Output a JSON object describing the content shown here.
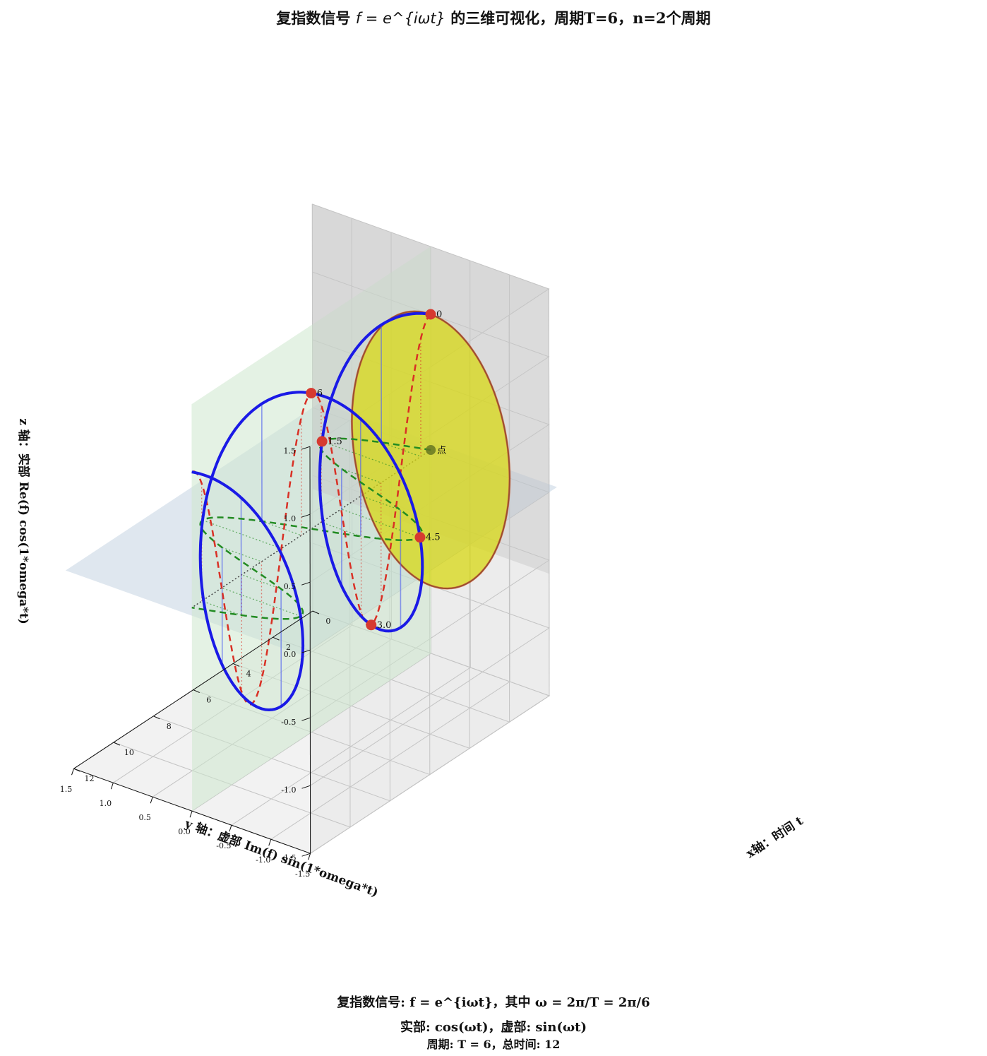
{
  "title": {
    "prefix": "复指数信号",
    "formula": "f = e^{iωt}",
    "suffix": "的三维可视化，周期T=6，n=2个周期"
  },
  "captions": {
    "line1": "复指数信号: f = e^{iωt}，其中 ω = 2π/T = 2π/6",
    "line2": "实部: cos(ωt)，虚部: sin(ωt)",
    "line3": "周期: T = 6，总时间: 12"
  },
  "chart_data": {
    "type": "line3d",
    "period": 6,
    "n_periods": 2,
    "t_range": [
      0,
      12
    ],
    "x_axis": {
      "label": "x轴：时间 t",
      "range": [
        0,
        12
      ],
      "ticks": [
        "0",
        "2",
        "4",
        "6",
        "8",
        "10",
        "12"
      ]
    },
    "y_axis": {
      "label": "y 轴：虚部 Im(f) sin(1*omega*t)",
      "range": [
        -1.5,
        1.5
      ],
      "ticks": [
        "-1.5",
        "-1.0",
        "-0.5",
        "0.0",
        "0.5",
        "1.0",
        "1.5"
      ]
    },
    "z_axis": {
      "label": "z 轴：实部 Re(f) cos(1*omega*t)",
      "range": [
        -1.5,
        1.5
      ],
      "ticks": [
        "-1.5",
        "-1.0",
        "-0.5",
        "0.0",
        "0.5",
        "1.0",
        "1.5"
      ]
    },
    "series": [
      {
        "name": "",
        "role": "helix",
        "x": "t",
        "y": "sin(ωt)",
        "z": "cos(ωt)",
        "color": "#1a1ae6"
      },
      {
        "name": "",
        "role": "real-part",
        "x": "t",
        "y": "0",
        "z": "cos(ωt)",
        "color": "#d93025"
      },
      {
        "name": "",
        "role": "imag-part",
        "x": "t",
        "y": "sin(ωt)",
        "z": "0",
        "color": "#228b22"
      }
    ],
    "marked_points": [
      {
        "label": "0",
        "t": 0
      },
      {
        "label": "1.5",
        "t": 1.5
      },
      {
        "label": "3.0",
        "t": 3.0
      },
      {
        "label": "4.5",
        "t": 4.5
      },
      {
        "label": "6",
        "t": 6
      }
    ],
    "origin_label": "点",
    "colors": {
      "helix": "#1a1ae6",
      "real": "#d93025",
      "imag": "#228b22",
      "point": "#d63a30",
      "disk": "#d8d814",
      "plane_xz": "#cde8cd",
      "plane_xy": "#b0c4d6"
    },
    "grid": true
  }
}
